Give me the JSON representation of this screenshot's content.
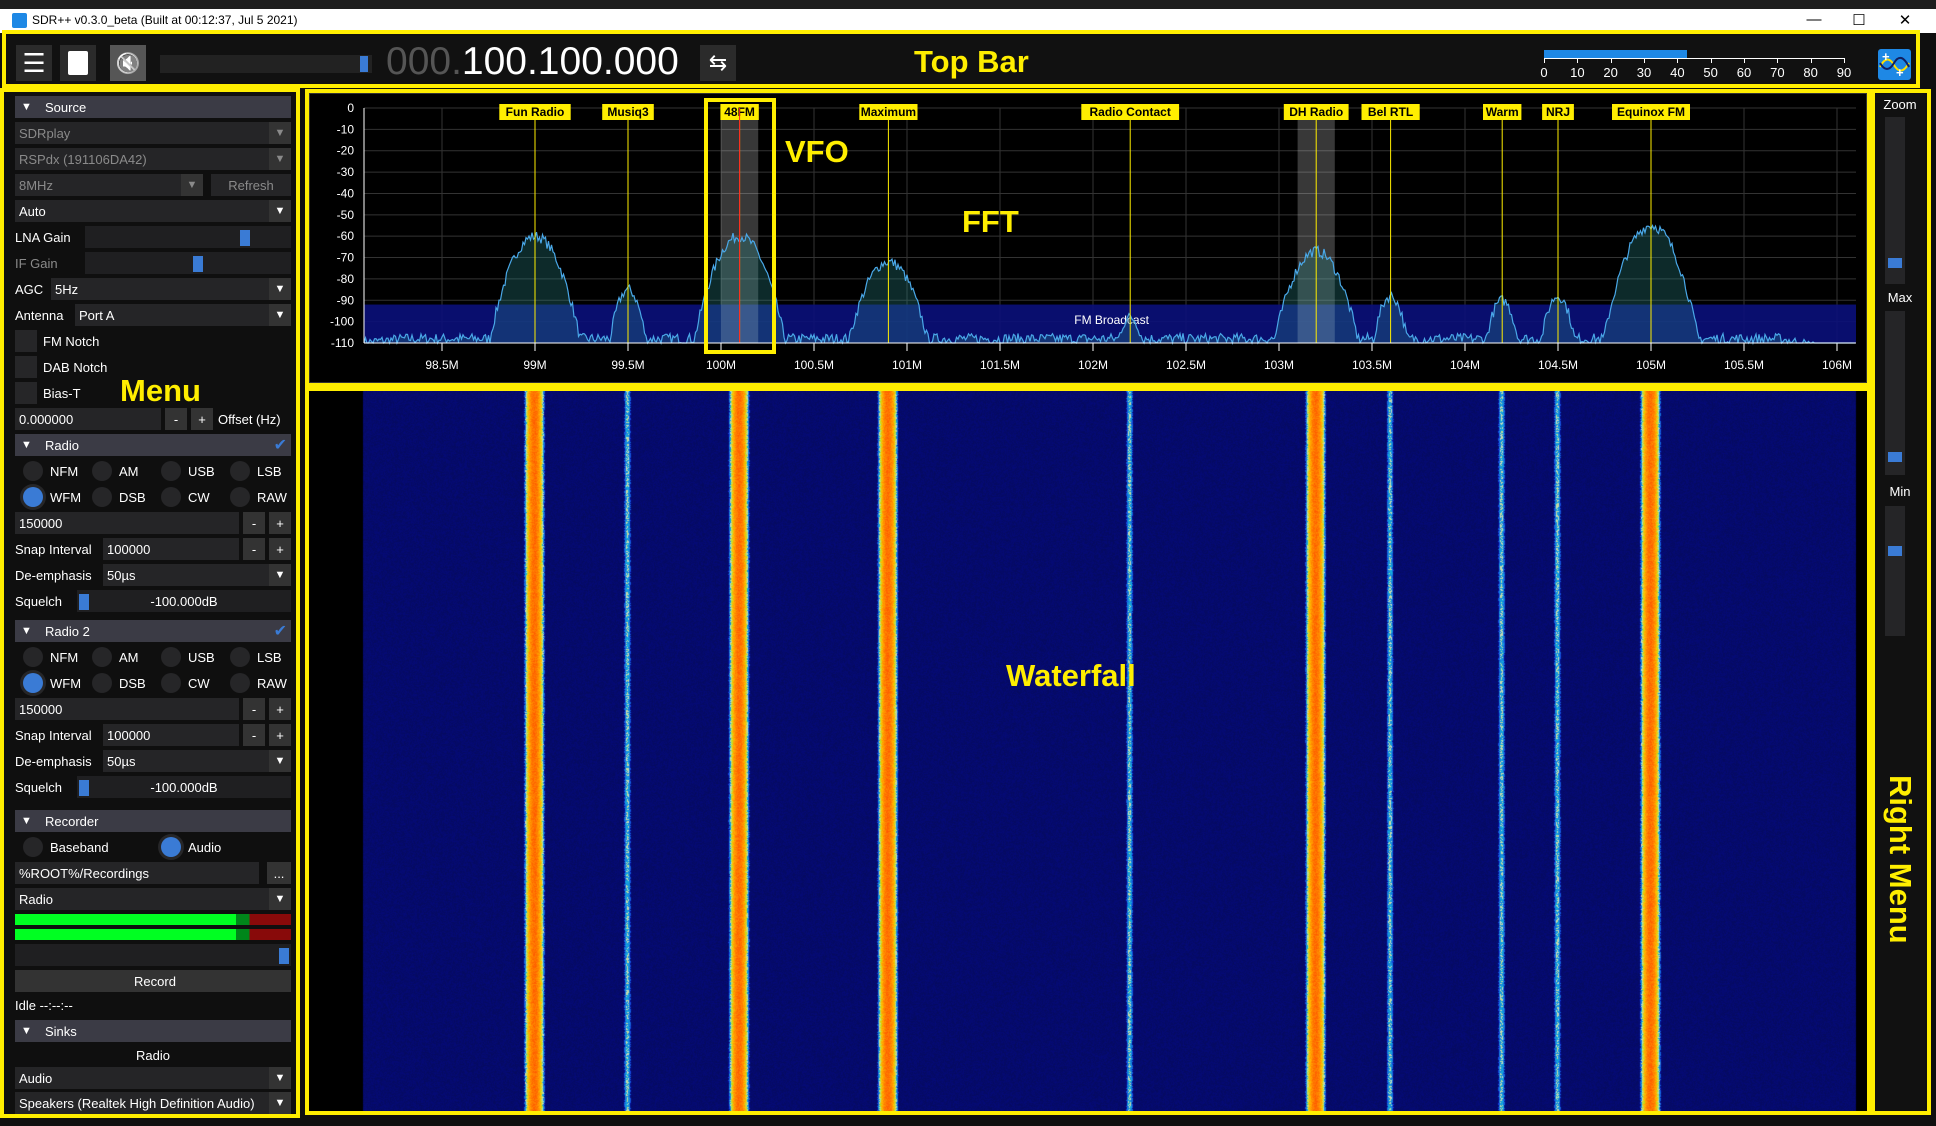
{
  "window": {
    "title": "SDR++ v0.3.0_beta (Built at 00:12:37, Jul  5 2021)",
    "minimize": "—",
    "maximize": "☐",
    "close": "✕"
  },
  "topbar": {
    "menu_icon": "☰",
    "stop_icon": "■",
    "mute_icon": "🔇",
    "volume": 0.96,
    "frequency_dim": "000.",
    "frequency": "100.100.000",
    "swap_icon": "⇆",
    "snr": {
      "value": 43,
      "max": 90,
      "ticks": [
        "0",
        "10",
        "20",
        "30",
        "40",
        "50",
        "60",
        "70",
        "80",
        "90"
      ]
    }
  },
  "menu": {
    "source": {
      "title": "Source",
      "device": "SDRplay",
      "serial": "RSPdx (191106DA42)",
      "samplerate": "8MHz",
      "refresh": "Refresh",
      "gain_mode": "Auto",
      "lna_label": "LNA Gain",
      "lna_value": 0.79,
      "if_label": "IF Gain",
      "if_value": 0.55,
      "agc_label": "AGC",
      "agc": "5Hz",
      "antenna_label": "Antenna",
      "antenna": "Port A",
      "fm_notch": "FM Notch",
      "dab_notch": "DAB Notch",
      "bias_t": "Bias-T",
      "offset": "0.000000",
      "minus": "-",
      "plus": "+",
      "offset_label": "Offset (Hz)"
    },
    "radios": [
      {
        "title": "Radio",
        "enabled": true,
        "modes": [
          "NFM",
          "AM",
          "USB",
          "LSB",
          "WFM",
          "DSB",
          "CW",
          "RAW"
        ],
        "selected": "WFM",
        "bandwidth": "150000",
        "snap_label": "Snap Interval",
        "snap": "100000",
        "deemph_label": "De-emphasis",
        "deemph": "50µs",
        "squelch_label": "Squelch",
        "squelch": "-100.000dB"
      },
      {
        "title": "Radio 2",
        "enabled": true,
        "modes": [
          "NFM",
          "AM",
          "USB",
          "LSB",
          "WFM",
          "DSB",
          "CW",
          "RAW"
        ],
        "selected": "WFM",
        "bandwidth": "150000",
        "snap_label": "Snap Interval",
        "snap": "100000",
        "deemph_label": "De-emphasis",
        "deemph": "50µs",
        "squelch_label": "Squelch",
        "squelch": "-100.000dB"
      }
    ],
    "recorder": {
      "title": "Recorder",
      "baseband": "Baseband",
      "audio": "Audio",
      "selected": "Audio",
      "path": "%ROOT%/Recordings",
      "browse": "...",
      "stream": "Radio",
      "level_l": 0.8,
      "level_r": 0.8,
      "volume": 1.0,
      "record": "Record",
      "status": "Idle --:--:--"
    },
    "sinks": {
      "title": "Sinks",
      "stream": "Radio",
      "type": "Audio",
      "device": "Speakers (Realtek High Definition Audio)"
    }
  },
  "fft": {
    "db_ticks": [
      "0",
      "-10",
      "-20",
      "-30",
      "-40",
      "-50",
      "-60",
      "-70",
      "-80",
      "-90",
      "-100",
      "-110"
    ],
    "freq_ticks": [
      "98.5M",
      "99M",
      "99.5M",
      "100M",
      "100.5M",
      "101M",
      "101.5M",
      "102M",
      "102.5M",
      "103M",
      "103.5M",
      "104M",
      "104.5M",
      "105M",
      "105.5M",
      "106M"
    ],
    "band_label": "FM Broadcast",
    "vfo_mhz": 100.1,
    "vfo2_mhz": 103.2,
    "stations": [
      {
        "name": "Fun Radio",
        "mhz": 99.0,
        "peak_db": -60
      },
      {
        "name": "Musiq3",
        "mhz": 99.5,
        "peak_db": -85
      },
      {
        "name": "48FM",
        "mhz": 100.1,
        "peak_db": -60
      },
      {
        "name": "Maximum",
        "mhz": 100.9,
        "peak_db": -72
      },
      {
        "name": "Radio Contact",
        "mhz": 102.2,
        "peak_db": -98
      },
      {
        "name": "DH Radio",
        "mhz": 103.2,
        "peak_db": -67
      },
      {
        "name": "Bel RTL",
        "mhz": 103.6,
        "peak_db": -88
      },
      {
        "name": "Warm",
        "mhz": 104.2,
        "peak_db": -90
      },
      {
        "name": "NRJ",
        "mhz": 104.5,
        "peak_db": -88
      },
      {
        "name": "Equinox FM",
        "mhz": 105.0,
        "peak_db": -55
      }
    ]
  },
  "right_menu": {
    "zoom": "Zoom",
    "max": "Max",
    "min": "Min"
  },
  "annotations": {
    "top_bar": "Top Bar",
    "vfo": "VFO",
    "fft": "FFT",
    "menu": "Menu",
    "waterfall": "Waterfall",
    "right_menu": "Right Menu"
  },
  "colors": {
    "accent": "#3a7bd5",
    "annotation": "#ffee00",
    "band": "#0a0f7a"
  }
}
